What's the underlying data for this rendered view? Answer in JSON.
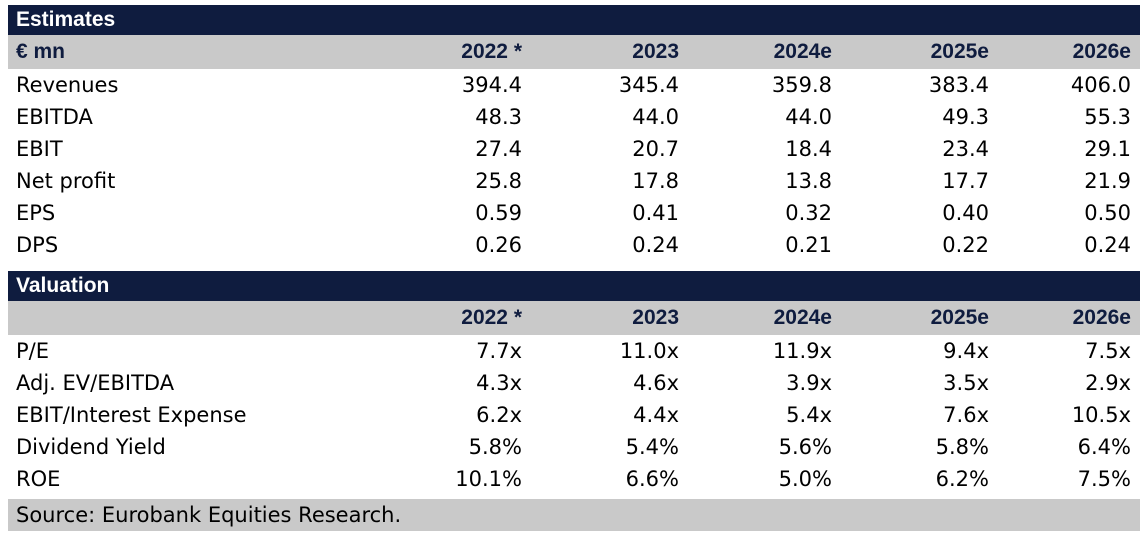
{
  "estimates": {
    "section_title": "Estimates",
    "header": [
      "€ mn",
      "2022 *",
      "2023",
      "2024e",
      "2025e",
      "2026e"
    ],
    "rows": [
      [
        "Revenues",
        "394.4",
        "345.4",
        "359.8",
        "383.4",
        "406.0"
      ],
      [
        "EBITDA",
        "48.3",
        "44.0",
        "44.0",
        "49.3",
        "55.3"
      ],
      [
        "EBIT",
        "27.4",
        "20.7",
        "18.4",
        "23.4",
        "29.1"
      ],
      [
        "Net profit",
        "25.8",
        "17.8",
        "13.8",
        "17.7",
        "21.9"
      ],
      [
        "EPS",
        "0.59",
        "0.41",
        "0.32",
        "0.40",
        "0.50"
      ],
      [
        "DPS",
        "0.26",
        "0.24",
        "0.21",
        "0.22",
        "0.24"
      ]
    ]
  },
  "valuation": {
    "section_title": "Valuation",
    "header": [
      "",
      "2022 *",
      "2023",
      "2024e",
      "2025e",
      "2026e"
    ],
    "rows": [
      [
        "P/E",
        "7.7x",
        "11.0x",
        "11.9x",
        "9.4x",
        "7.5x"
      ],
      [
        "Adj. EV/EBITDA",
        "4.3x",
        "4.6x",
        "3.9x",
        "3.5x",
        "2.9x"
      ],
      [
        "EBIT/Interest Expense",
        "6.2x",
        "4.4x",
        "5.4x",
        "7.6x",
        "10.5x"
      ],
      [
        "Dividend Yield",
        "5.8%",
        "5.4%",
        "5.6%",
        "5.8%",
        "6.4%"
      ],
      [
        "ROE",
        "10.1%",
        "6.6%",
        "5.0%",
        "6.2%",
        "7.5%"
      ]
    ]
  },
  "source_note": "Source: Eurobank Equities Research.",
  "colors": {
    "navy": "#0f1c3f",
    "header_gray": "#c9c9c9"
  }
}
